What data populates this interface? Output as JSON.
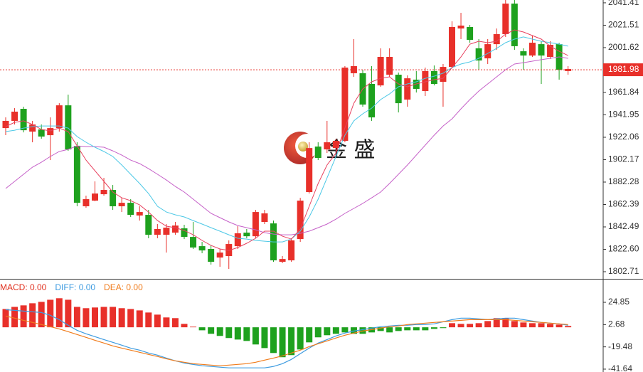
{
  "chart_data": [
    {
      "type": "candlestick",
      "watermark": "金 盛",
      "up_color": "#e8302a",
      "down_color": "#1ea11e",
      "ylim": [
        1796.4,
        2043.9
      ],
      "yticks": [
        2041.41,
        2021.51,
        2001.62,
        1961.84,
        1941.95,
        1922.06,
        1902.17,
        1882.28,
        1862.39,
        1842.49,
        {
          "value": 1822.6,
          "label": "1822.60"
        },
        1802.71
      ],
      "current_price": 1981.98,
      "open": [
        1930.2,
        1936.6,
        1947.3,
        1927.1,
        1929.0,
        1923.9,
        1930.2,
        1950.4,
        1914.4,
        1860.8,
        1865.8,
        1871.5,
        1875.3,
        1860.8,
        1863.9,
        1852.6,
        1853.2,
        1835.5,
        1835.5,
        1837.4,
        1841.2,
        1833.6,
        1825.4,
        1822.9,
        1815.3,
        1816.6,
        1825.4,
        1837.4,
        1834.2,
        1846.9,
        1845.6,
        1811.5,
        1812.8,
        1831.7,
        1873.4,
        1913.8,
        1911.3,
        1912.5,
        1918.9,
        1978.9,
        1978.9,
        1969.4,
        1968.1,
        1977.6,
        1977.6,
        1955.5,
        1973.2,
        1963.1,
        1980.8,
        1971.3,
        1984.5,
        2018.6,
        2019.9,
        2001.0,
        1992.1,
        2004.7,
        2013.6,
        2040.7,
        1998.4,
        1994.6,
        2004.7,
        1993.4,
        2004.7,
        1980.8
      ],
      "high": [
        1939.7,
        1947.9,
        1949.2,
        1936.6,
        1933.4,
        1939.7,
        1952.3,
        1959.9,
        1917.6,
        1870.2,
        1882.9,
        1886.0,
        1879.7,
        1868.3,
        1867.1,
        1860.8,
        1857.6,
        1845.0,
        1845.0,
        1846.9,
        1844.4,
        1846.9,
        1829.2,
        1826.0,
        1822.9,
        1830.5,
        1843.1,
        1840.6,
        1857.6,
        1857.6,
        1848.1,
        1816.6,
        1832.4,
        1868.3,
        1917.6,
        1917.6,
        1936.6,
        1920.8,
        1985.2,
        2009.2,
        1982.0,
        1985.2,
        2001.0,
        2001.0,
        1979.5,
        1977.0,
        1980.8,
        1983.9,
        1985.8,
        1987.1,
        2025.0,
        2032.5,
        2021.8,
        2009.2,
        2009.2,
        2018.6,
        2043.9,
        2043.9,
        2001.0,
        2012.3,
        2007.3,
        2007.3,
        2005.9,
        1985.2
      ],
      "low": [
        1923.9,
        1933.4,
        1926.4,
        1917.6,
        1920.8,
        1901.8,
        1927.1,
        1910.0,
        1860.8,
        1859.5,
        1865.2,
        1870.2,
        1857.6,
        1855.7,
        1851.3,
        1848.1,
        1832.4,
        1832.4,
        1819.7,
        1835.5,
        1831.7,
        1822.9,
        1819.1,
        1809.0,
        1807.1,
        1805.2,
        1822.9,
        1832.4,
        1832.4,
        1845.0,
        1811.5,
        1810.3,
        1811.5,
        1829.2,
        1872.1,
        1901.8,
        1908.1,
        1910.0,
        1917.6,
        1975.7,
        1949.2,
        1936.6,
        1966.9,
        1975.7,
        1944.1,
        1949.2,
        1961.8,
        1958.7,
        1968.1,
        1949.2,
        1983.3,
        2009.2,
        2006.0,
        1982.0,
        1987.1,
        1999.7,
        2011.1,
        1999.7,
        1982.0,
        1993.4,
        1969.4,
        1991.5,
        1973.2,
        1977.6
      ],
      "close": [
        1936.6,
        1944.8,
        1928.3,
        1933.4,
        1922.7,
        1930.2,
        1950.4,
        1911.3,
        1863.9,
        1867.1,
        1872.1,
        1875.3,
        1860.8,
        1863.9,
        1853.2,
        1855.7,
        1835.5,
        1840.6,
        1841.8,
        1843.7,
        1833.6,
        1824.2,
        1821.6,
        1811.5,
        1819.7,
        1827.3,
        1836.8,
        1834.2,
        1855.7,
        1854.5,
        1812.8,
        1814.0,
        1830.5,
        1865.8,
        1912.5,
        1903.7,
        1917.6,
        1918.9,
        1983.9,
        1985.2,
        1951.1,
        1939.7,
        1993.4,
        1993.4,
        1952.3,
        1974.4,
        1965.0,
        1980.8,
        1969.4,
        1984.5,
        2019.9,
        2021.2,
        2008.5,
        1990.2,
        2004.7,
        2013.6,
        2040.7,
        2002.9,
        1994.6,
        2006.0,
        1994.6,
        2004.1,
        1982.0,
        1982.7
      ],
      "lines": [
        {
          "color": "#c560c8",
          "values": [
            1876.6,
            1882.9,
            1889.2,
            1895.5,
            1899.9,
            1905.0,
            1909.4,
            1911.3,
            1914.4,
            1913.8,
            1913.8,
            1913.2,
            1910.0,
            1906.2,
            1901.8,
            1898.7,
            1894.2,
            1889.2,
            1884.1,
            1878.4,
            1873.4,
            1867.1,
            1860.8,
            1854.5,
            1850.7,
            1846.9,
            1843.7,
            1841.8,
            1839.9,
            1837.4,
            1836.1,
            1835.5,
            1835.5,
            1836.8,
            1838.7,
            1841.8,
            1845.0,
            1849.4,
            1854.5,
            1858.9,
            1863.3,
            1868.3,
            1873.4,
            1881.0,
            1889.2,
            1897.4,
            1906.2,
            1915.1,
            1923.9,
            1932.1,
            1938.4,
            1947.3,
            1955.5,
            1963.1,
            1969.4,
            1975.7,
            1982.0,
            1987.1,
            1988.3,
            1989.6,
            1990.9,
            1992.1,
            1993.4,
            1992.1
          ]
        },
        {
          "color": "#4cc8e6",
          "values": [
            1927.1,
            1928.3,
            1930.2,
            1931.5,
            1932.1,
            1932.1,
            1932.1,
            1930.2,
            1922.7,
            1917.6,
            1913.2,
            1909.4,
            1905.0,
            1897.4,
            1889.2,
            1881.0,
            1872.1,
            1860.8,
            1855.7,
            1853.2,
            1851.3,
            1848.1,
            1845.0,
            1841.8,
            1838.7,
            1835.5,
            1832.4,
            1831.7,
            1830.5,
            1829.8,
            1829.2,
            1829.2,
            1831.7,
            1838.7,
            1851.3,
            1867.1,
            1886.0,
            1905.0,
            1923.9,
            1936.6,
            1942.9,
            1947.9,
            1955.5,
            1960.5,
            1966.9,
            1969.4,
            1971.3,
            1974.4,
            1976.3,
            1978.9,
            1983.9,
            1987.1,
            1989.0,
            1992.1,
            1996.5,
            2001.0,
            2006.0,
            2009.2,
            2011.1,
            2009.2,
            2007.3,
            2006.0,
            2004.7,
            2002.9
          ]
        },
        {
          "color": "#e8415e",
          "values": [
            1931.5,
            1935.3,
            1936.6,
            1933.4,
            1929.0,
            1927.7,
            1930.2,
            1927.1,
            1914.4,
            1901.8,
            1892.3,
            1882.9,
            1873.4,
            1868.3,
            1865.8,
            1862.0,
            1855.7,
            1848.1,
            1843.1,
            1841.8,
            1839.3,
            1835.5,
            1830.5,
            1826.0,
            1822.9,
            1821.6,
            1824.2,
            1828.0,
            1832.4,
            1838.7,
            1838.7,
            1834.2,
            1831.7,
            1840.6,
            1860.8,
            1881.0,
            1897.4,
            1908.1,
            1930.2,
            1952.3,
            1965.0,
            1971.3,
            1974.4,
            1975.7,
            1969.4,
            1966.9,
            1969.4,
            1971.3,
            1973.2,
            1974.4,
            1983.9,
            1993.4,
            2004.7,
            2007.3,
            2006.0,
            2007.3,
            2013.6,
            2017.4,
            2015.5,
            2012.3,
            2009.2,
            2002.9,
            1998.4,
            1994.6
          ]
        }
      ]
    },
    {
      "type": "macd",
      "legend": [
        {
          "text": "MACD: 0.00",
          "color": "#e0301e"
        },
        {
          "text": "DIFF: 0.00",
          "color": "#3d9be0"
        },
        {
          "text": "DEA: 0.00",
          "color": "#f07c1c"
        }
      ],
      "up_color": "#e8302a",
      "down_color": "#1ea11e",
      "ylim": [
        -44.5,
        46.1
      ],
      "yticks": [
        24.85,
        2.68,
        -19.48,
        -41.64
      ],
      "values": [
        18.2,
        20.3,
        21.8,
        23.9,
        25.3,
        27.4,
        28.9,
        27.4,
        20.3,
        19.0,
        19.7,
        20.3,
        20.3,
        19.0,
        18.2,
        16.8,
        14.7,
        12.6,
        9.8,
        9.1,
        3.4,
        0.6,
        -3.0,
        -6.5,
        -8.6,
        -10.7,
        -12.2,
        -13.6,
        -17.1,
        -20.7,
        -25.6,
        -29.8,
        -27.7,
        -22.1,
        -15.0,
        -10.0,
        -7.9,
        -6.5,
        -5.1,
        -6.5,
        -6.5,
        -5.1,
        -3.7,
        -5.1,
        -3.7,
        -3.0,
        -3.0,
        -3.0,
        -1.6,
        -0.8,
        4.1,
        3.4,
        3.4,
        4.1,
        6.2,
        9.1,
        9.1,
        6.2,
        4.8,
        4.1,
        4.1,
        3.4,
        2.7,
        1.3
      ],
      "lines": [
        {
          "color": "#3d9be0",
          "values": [
            17.5,
            16.8,
            16.1,
            15.4,
            14.7,
            11.9,
            7.6,
            2.0,
            -3.0,
            -6.5,
            -9.3,
            -12.2,
            -15.0,
            -17.8,
            -20.7,
            -22.8,
            -25.6,
            -27.7,
            -30.6,
            -33.4,
            -35.6,
            -37.0,
            -38.3,
            -39.0,
            -39.7,
            -40.4,
            -40.4,
            -40.4,
            -40.4,
            -40.4,
            -39.0,
            -36.2,
            -32.0,
            -26.3,
            -20.7,
            -15.7,
            -12.2,
            -8.6,
            -5.8,
            -3.7,
            -2.3,
            -0.8,
            0.6,
            1.3,
            2.0,
            2.0,
            2.7,
            2.7,
            3.4,
            5.5,
            7.6,
            9.1,
            9.1,
            8.3,
            7.6,
            8.3,
            9.1,
            9.1,
            7.6,
            6.2,
            4.8,
            4.1,
            3.4,
            2.0
          ]
        },
        {
          "color": "#f07c1c",
          "values": [
            11.2,
            9.1,
            6.9,
            4.8,
            2.7,
            0.6,
            -1.6,
            -4.4,
            -7.2,
            -10.0,
            -12.9,
            -15.7,
            -18.5,
            -20.7,
            -22.8,
            -24.9,
            -27.0,
            -29.1,
            -31.3,
            -33.4,
            -34.8,
            -36.2,
            -36.9,
            -37.6,
            -38.3,
            -37.6,
            -36.9,
            -36.2,
            -34.8,
            -32.7,
            -30.6,
            -28.4,
            -25.6,
            -22.8,
            -19.2,
            -16.4,
            -13.6,
            -10.7,
            -7.9,
            -5.8,
            -3.7,
            -2.3,
            -0.8,
            0.6,
            1.3,
            2.7,
            3.4,
            4.1,
            4.8,
            5.5,
            6.2,
            6.9,
            7.6,
            7.6,
            7.6,
            7.6,
            7.6,
            6.9,
            6.2,
            5.5,
            4.8,
            4.1,
            3.4,
            2.7
          ]
        }
      ]
    }
  ]
}
